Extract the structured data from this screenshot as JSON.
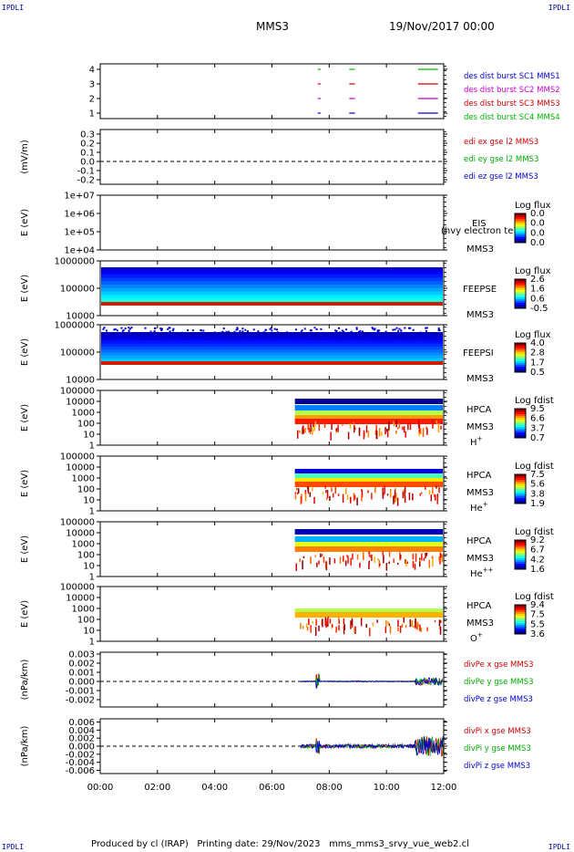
{
  "corners": {
    "tl": "IPDLI",
    "tr": "IPDLI",
    "bl": "IPDLI",
    "br": "IPDLI"
  },
  "header": {
    "title": "MMS3",
    "datetime": "19/Nov/2017 00:00"
  },
  "footer": {
    "producer": "Produced by cl (IRAP)",
    "print_date": "Printing date: 29/Nov/2023",
    "filename": "mms_mms3_srvy_vue_web2.cl"
  },
  "chart_data": {
    "type": "multi-panel",
    "xaxis": {
      "ticks": [
        "00:00",
        "02:00",
        "04:00",
        "06:00",
        "08:00",
        "10:00",
        "12:00"
      ],
      "range_hours": [
        0,
        12
      ]
    },
    "panels": [
      {
        "id": "burst",
        "type": "timeline",
        "ylabel": "",
        "ticks": [
          "4",
          "3",
          "2",
          "1"
        ],
        "legend": [
          {
            "text": "des dist burst SC1 MMS1",
            "color": "#0000cc"
          },
          {
            "text": "des dist burst SC2 MMS2",
            "color": "#cc00cc"
          },
          {
            "text": "des dist burst SC3 MMS3",
            "color": "#cc0000"
          },
          {
            "text": "des dist burst SC4 MMS4",
            "color": "#00bb00"
          }
        ],
        "intervals_hours": [
          [
            7.6,
            7.7
          ],
          [
            8.7,
            8.9
          ],
          [
            11.1,
            11.8
          ]
        ]
      },
      {
        "id": "edi",
        "type": "line",
        "ylabel": "(mV/m)",
        "ticks": [
          "0.3",
          "0.2",
          "0.1",
          "0.0",
          "-0.1",
          "-0.2"
        ],
        "ylim": [
          -0.25,
          0.35
        ],
        "legend": [
          {
            "text": "edi ex gse l2 MMS3",
            "color": "#cc0000"
          },
          {
            "text": "edi ey gse l2 MMS3",
            "color": "#00aa00"
          },
          {
            "text": "edi ez gse l2 MMS3",
            "color": "#0000cc"
          }
        ]
      },
      {
        "id": "eis",
        "type": "spectrogram",
        "ylabel": "E (eV)",
        "ticks": [
          "1e+07",
          "1e+06",
          "1e+05",
          "1e+04"
        ],
        "label": "EIS",
        "sc": "MMS3",
        "overlay": "(hvy electron te",
        "cbar": {
          "title": "Log flux",
          "ticks": [
            "0.0",
            "0.0",
            "0.0",
            "0.0"
          ]
        }
      },
      {
        "id": "feepse",
        "type": "spectrogram",
        "ylabel": "E (eV)",
        "ticks": [
          "1000000",
          "100000",
          "10000"
        ],
        "label": "FEEPSE",
        "sc": "MMS3",
        "cbar": {
          "title": "Log flux",
          "ticks": [
            "2.6",
            "1.6",
            "0.6",
            "-0.5"
          ]
        }
      },
      {
        "id": "feepsi",
        "type": "spectrogram",
        "ylabel": "E (eV)",
        "ticks": [
          "1000000",
          "100000",
          "10000"
        ],
        "label": "FEEPSI",
        "sc": "MMS3",
        "cbar": {
          "title": "Log flux",
          "ticks": [
            "4.0",
            "2.8",
            "1.7",
            "0.5"
          ]
        }
      },
      {
        "id": "hpca_h",
        "type": "spectrogram",
        "ylabel": "E (eV)",
        "ticks": [
          "100000",
          "10000",
          "1000",
          "100",
          "10",
          "1"
        ],
        "label": "HPCA",
        "sc": "MMS3",
        "species": "H",
        "sup": "+",
        "cbar": {
          "title": "Log fdist",
          "ticks": [
            "9.5",
            "6.6",
            "3.7",
            "0.7"
          ]
        }
      },
      {
        "id": "hpca_he",
        "type": "spectrogram",
        "ylabel": "E (eV)",
        "ticks": [
          "100000",
          "10000",
          "1000",
          "100",
          "10",
          "1"
        ],
        "label": "HPCA",
        "sc": "MMS3",
        "species": "He",
        "sup": "+",
        "cbar": {
          "title": "Log fdist",
          "ticks": [
            "7.5",
            "5.6",
            "3.8",
            "1.9"
          ]
        }
      },
      {
        "id": "hpca_he2",
        "type": "spectrogram",
        "ylabel": "E (eV)",
        "ticks": [
          "100000",
          "10000",
          "1000",
          "100",
          "10",
          "1"
        ],
        "label": "HPCA",
        "sc": "MMS3",
        "species": "He",
        "sup": "++",
        "cbar": {
          "title": "Log fdist",
          "ticks": [
            "9.2",
            "6.7",
            "4.2",
            "1.6"
          ]
        }
      },
      {
        "id": "hpca_o",
        "type": "spectrogram",
        "ylabel": "E (eV)",
        "ticks": [
          "100000",
          "10000",
          "1000",
          "100",
          "10",
          "1"
        ],
        "label": "HPCA",
        "sc": "MMS3",
        "species": "O",
        "sup": "+",
        "cbar": {
          "title": "Log fdist",
          "ticks": [
            "9.4",
            "7.5",
            "5.5",
            "3.6"
          ]
        }
      },
      {
        "id": "divpe",
        "type": "line",
        "ylabel": "(nPa/km)",
        "ticks": [
          "0.003",
          "0.002",
          "0.001",
          "0.000",
          "-0.001",
          "-0.002"
        ],
        "ylim": [
          -0.0028,
          0.0032
        ],
        "legend": [
          {
            "text": "divPe x gse MMS3",
            "color": "#cc0000"
          },
          {
            "text": "divPe y gse MMS3",
            "color": "#00aa00"
          },
          {
            "text": "divPe z gse MMS3",
            "color": "#0000cc"
          }
        ]
      },
      {
        "id": "divpi",
        "type": "line",
        "ylabel": "(nPa/km)",
        "ticks": [
          "0.006",
          "0.004",
          "0.002",
          "0.000",
          "-0.002",
          "-0.004",
          "-0.006"
        ],
        "ylim": [
          -0.0068,
          0.0068
        ],
        "legend": [
          {
            "text": "divPi x gse MMS3",
            "color": "#cc0000"
          },
          {
            "text": "divPi y gse MMS3",
            "color": "#00aa00"
          },
          {
            "text": "divPi z gse MMS3",
            "color": "#0000cc"
          }
        ]
      }
    ]
  }
}
